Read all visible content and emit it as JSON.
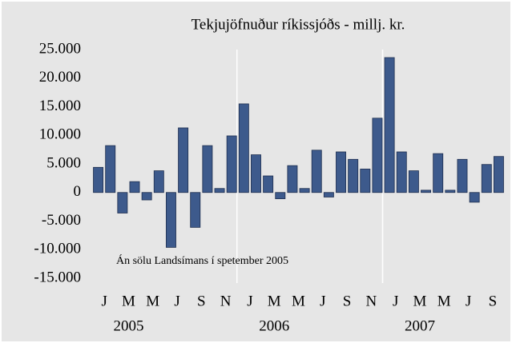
{
  "chart_data": {
    "type": "bar",
    "title": "Tekjujöfnuður ríkissjóðs - millj. kr.",
    "annotation": "Án sölu Landsímans í spetember 2005",
    "categories": [
      "J",
      null,
      "M",
      null,
      "M",
      null,
      "J",
      null,
      "S",
      null,
      "N",
      null,
      "J",
      null,
      "M",
      null,
      "M",
      null,
      "J",
      null,
      "S",
      null,
      "N",
      null,
      "J",
      null,
      "M",
      null,
      "M",
      null,
      "J",
      null,
      "S",
      null
    ],
    "year_labels": [
      "2005",
      "2006",
      "2007"
    ],
    "values": [
      4400,
      8200,
      -3600,
      1900,
      -1300,
      3800,
      -9600,
      11300,
      -6100,
      8200,
      700,
      9900,
      15500,
      6600,
      2900,
      -1100,
      4700,
      700,
      7400,
      -800,
      7100,
      5800,
      4100,
      13000,
      23600,
      7100,
      3800,
      400,
      6800,
      400,
      5800,
      -1700,
      4900,
      6300
    ],
    "color": "#3d5a8c",
    "ylim": [
      -15000,
      25000
    ],
    "yticks": [
      {
        "value": -15000,
        "label": "-15.000"
      },
      {
        "value": -10000,
        "label": "-10.000"
      },
      {
        "value": -5000,
        "label": "-5.000"
      },
      {
        "value": 0,
        "label": "0"
      },
      {
        "value": 5000,
        "label": "5.000"
      },
      {
        "value": 10000,
        "label": "10.000"
      },
      {
        "value": 15000,
        "label": "15.000"
      },
      {
        "value": 20000,
        "label": "20.000"
      },
      {
        "value": 25000,
        "label": "25.000"
      }
    ]
  }
}
